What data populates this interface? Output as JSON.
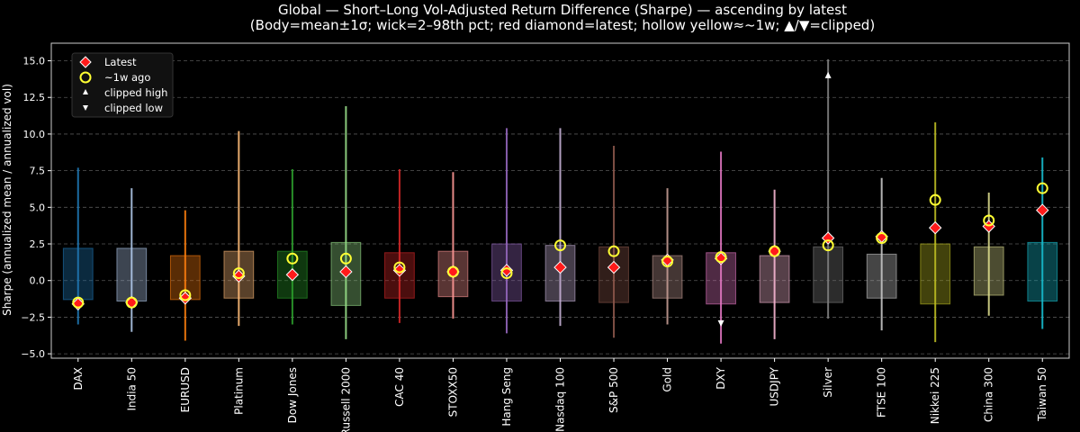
{
  "chart_data": {
    "type": "candlestick-box",
    "title": "Global — Short–Long Vol-Adjusted Return Difference (Sharpe) — ascending by latest",
    "subtitle": "(Body=mean±1σ; wick=2–98th pct; red diamond=latest; hollow yellow≈~1w; ▲/▼=clipped)",
    "xlabel": "",
    "ylabel": "Sharpe (annualized mean / annualized vol)",
    "ylim": [
      -5.3,
      16.2
    ],
    "yticks": [
      "−5.0",
      "−2.5",
      "0.0",
      "2.5",
      "5.0",
      "7.5",
      "10.0",
      "12.5",
      "15.0"
    ],
    "ytick_values": [
      -5.0,
      -2.5,
      0.0,
      2.5,
      5.0,
      7.5,
      10.0,
      12.5,
      15.0
    ],
    "grid": "horizontal dashed",
    "legend_position": "top-left",
    "legend": {
      "latest": "Latest",
      "week_ago": "~1w ago",
      "clipped_high": "clipped high",
      "clipped_low": "clipped low"
    },
    "colors": {
      "background": "#000000",
      "latest": "#ff1a1a",
      "week_ago": "#ffff33",
      "grid": "#555555"
    },
    "categories": [
      "DAX",
      "India 50",
      "EURUSD",
      "Platinum",
      "Dow Jones",
      "Russell 2000",
      "CAC 40",
      "STOXX50",
      "Hang Seng",
      "Nasdaq 100",
      "S&P 500",
      "Gold",
      "DXY",
      "USDJPY",
      "Silver",
      "FTSE 100",
      "Nikkei 225",
      "China 300",
      "Taiwan 50"
    ],
    "series": [
      {
        "name": "DAX",
        "color": "#1f77b4",
        "body_low": -1.3,
        "body_high": 2.2,
        "wick_low": -3.0,
        "wick_high": 7.7,
        "latest": -1.6,
        "week_ago": -1.5,
        "clipped": ""
      },
      {
        "name": "India 50",
        "color": "#aec7e8",
        "body_low": -1.4,
        "body_high": 2.2,
        "wick_low": -3.5,
        "wick_high": 6.3,
        "latest": -1.5,
        "week_ago": -1.5,
        "clipped": ""
      },
      {
        "name": "EURUSD",
        "color": "#ff7f0e",
        "body_low": -1.3,
        "body_high": 1.7,
        "wick_low": -4.1,
        "wick_high": 4.8,
        "latest": -1.2,
        "week_ago": -1.0,
        "clipped": ""
      },
      {
        "name": "Platinum",
        "color": "#ffbb78",
        "body_low": -1.2,
        "body_high": 2.0,
        "wick_low": -3.1,
        "wick_high": 10.2,
        "latest": 0.3,
        "week_ago": 0.5,
        "clipped": ""
      },
      {
        "name": "Dow Jones",
        "color": "#2ca02c",
        "body_low": -1.2,
        "body_high": 2.0,
        "wick_low": -3.0,
        "wick_high": 7.6,
        "latest": 0.4,
        "week_ago": 1.5,
        "clipped": ""
      },
      {
        "name": "Russell 2000",
        "color": "#98df8a",
        "body_low": -1.7,
        "body_high": 2.6,
        "wick_low": -4.0,
        "wick_high": 11.9,
        "latest": 0.6,
        "week_ago": 1.5,
        "clipped": ""
      },
      {
        "name": "CAC 40",
        "color": "#d62728",
        "body_low": -1.2,
        "body_high": 1.9,
        "wick_low": -2.9,
        "wick_high": 7.6,
        "latest": 0.7,
        "week_ago": 0.9,
        "clipped": ""
      },
      {
        "name": "STOXX50",
        "color": "#ff9896",
        "body_low": -1.1,
        "body_high": 2.0,
        "wick_low": -2.6,
        "wick_high": 7.4,
        "latest": 0.6,
        "week_ago": 0.6,
        "clipped": ""
      },
      {
        "name": "Hang Seng",
        "color": "#9467bd",
        "body_low": -1.4,
        "body_high": 2.5,
        "wick_low": -3.6,
        "wick_high": 10.4,
        "latest": 0.7,
        "week_ago": 0.5,
        "clipped": ""
      },
      {
        "name": "Nasdaq 100",
        "color": "#c5b0d5",
        "body_low": -1.4,
        "body_high": 2.4,
        "wick_low": -3.1,
        "wick_high": 10.4,
        "latest": 0.9,
        "week_ago": 2.4,
        "clipped": ""
      },
      {
        "name": "S&P 500",
        "color": "#8c564b",
        "body_low": -1.5,
        "body_high": 2.3,
        "wick_low": -3.9,
        "wick_high": 9.2,
        "latest": 0.9,
        "week_ago": 2.0,
        "clipped": ""
      },
      {
        "name": "Gold",
        "color": "#c49c94",
        "body_low": -1.2,
        "body_high": 1.7,
        "wick_low": -3.0,
        "wick_high": 6.3,
        "latest": 1.4,
        "week_ago": 1.3,
        "clipped": ""
      },
      {
        "name": "DXY",
        "color": "#e377c2",
        "body_low": -1.6,
        "body_high": 1.9,
        "wick_low": -4.3,
        "wick_high": 8.8,
        "latest": 1.5,
        "week_ago": 1.6,
        "clipped": "low",
        "clip_value": -2.9
      },
      {
        "name": "USDJPY",
        "color": "#f7b6d2",
        "body_low": -1.5,
        "body_high": 1.7,
        "wick_low": -4.0,
        "wick_high": 6.2,
        "latest": 2.0,
        "week_ago": 2.0,
        "clipped": ""
      },
      {
        "name": "Silver",
        "color": "#7f7f7f",
        "body_low": -1.5,
        "body_high": 2.3,
        "wick_low": -2.6,
        "wick_high": 15.1,
        "latest": 2.9,
        "week_ago": 2.4,
        "clipped": "high",
        "clip_value": 14.0
      },
      {
        "name": "FTSE 100",
        "color": "#c7c7c7",
        "body_low": -1.2,
        "body_high": 1.8,
        "wick_low": -3.4,
        "wick_high": 7.0,
        "latest": 3.0,
        "week_ago": 2.9,
        "clipped": ""
      },
      {
        "name": "Nikkei 225",
        "color": "#bcbd22",
        "body_low": -1.6,
        "body_high": 2.5,
        "wick_low": -4.2,
        "wick_high": 10.8,
        "latest": 3.6,
        "week_ago": 5.5,
        "clipped": ""
      },
      {
        "name": "China 300",
        "color": "#dbdb8d",
        "body_low": -1.0,
        "body_high": 2.3,
        "wick_low": -2.4,
        "wick_high": 6.0,
        "latest": 3.7,
        "week_ago": 4.1,
        "clipped": ""
      },
      {
        "name": "Taiwan 50",
        "color": "#17becf",
        "body_low": -1.4,
        "body_high": 2.6,
        "wick_low": -3.3,
        "wick_high": 8.4,
        "latest": 4.8,
        "week_ago": 6.3,
        "clipped": ""
      }
    ]
  }
}
